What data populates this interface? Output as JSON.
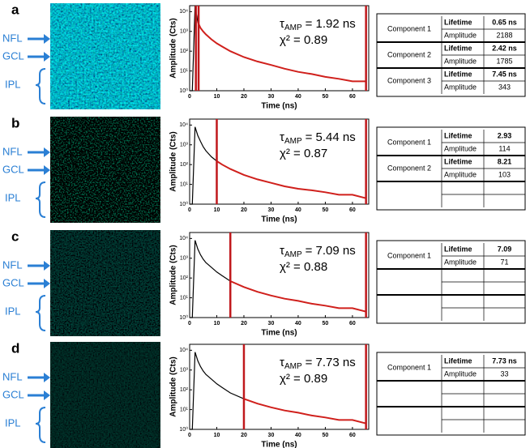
{
  "panels": [
    {
      "letter": "a",
      "layers": [
        "NFL",
        "GCL",
        "IPL"
      ],
      "table": [
        {
          "component": "Component 1",
          "fields": [
            [
              "Lifetime",
              "0.65 ns"
            ],
            [
              "Amplitude",
              "2188"
            ]
          ]
        },
        {
          "component": "Component 2",
          "fields": [
            [
              "Lifetime",
              "2.42 ns"
            ],
            [
              "Amplitude",
              "1785"
            ]
          ]
        },
        {
          "component": "Component 3",
          "fields": [
            [
              "Lifetime",
              "7.45 ns"
            ],
            [
              "Amplitude",
              "343"
            ]
          ]
        }
      ]
    },
    {
      "letter": "b",
      "layers": [
        "NFL",
        "GCL",
        "IPL"
      ],
      "table": [
        {
          "component": "Component 1",
          "fields": [
            [
              "Lifetime",
              "2.93"
            ],
            [
              "Amplitude",
              "114"
            ]
          ]
        },
        {
          "component": "Component 2",
          "fields": [
            [
              "Lifetime",
              "8.21"
            ],
            [
              "Amplitude",
              "103"
            ]
          ]
        }
      ]
    },
    {
      "letter": "c",
      "layers": [
        "NFL",
        "GCL",
        "IPL"
      ],
      "table": [
        {
          "component": "Component 1",
          "fields": [
            [
              "Lifetime",
              "7.09"
            ],
            [
              "Amplitude",
              "71"
            ]
          ]
        }
      ]
    },
    {
      "letter": "d",
      "layers": [
        "NFL",
        "GCL",
        "IPL"
      ],
      "table": [
        {
          "component": "Component 1",
          "fields": [
            [
              "Lifetime",
              "7.73 ns"
            ],
            [
              "Amplitude",
              "33"
            ]
          ]
        }
      ]
    }
  ],
  "chart_data": [
    {
      "type": "line",
      "x_label": "Time (ns)",
      "y_label": "Amplitude (Cts)",
      "log_y": true,
      "tau": {
        "symbol": "τ",
        "subscript": "AMP",
        "text": "= 1.92 ns"
      },
      "chi": "χ² = 0.89",
      "x": [
        0,
        1,
        2,
        3,
        4,
        5,
        6,
        8,
        10,
        12,
        15,
        20,
        25,
        30,
        35,
        40,
        45,
        50,
        55,
        60,
        65
      ],
      "series": [
        {
          "color": "#000000",
          "values": [
            1,
            1,
            20000,
            3000,
            1500,
            1000,
            700,
            400,
            250,
            170,
            100,
            50,
            30,
            20,
            13,
            9,
            7,
            5,
            4,
            3,
            3
          ]
        },
        {
          "color": "#d0201c",
          "values": [
            null,
            null,
            null,
            3000,
            1500,
            1000,
            700,
            400,
            250,
            170,
            100,
            50,
            30,
            20,
            13,
            9,
            7,
            5,
            4,
            3,
            3
          ]
        }
      ],
      "cursors": [
        2.3,
        3.3,
        65
      ],
      "cursor_color": "#c0181c",
      "xlim": [
        0,
        66
      ],
      "ylim": [
        1,
        20000
      ],
      "xticks": [
        0,
        10,
        20,
        30,
        40,
        50,
        60
      ],
      "yticks": [
        {
          "value": 1,
          "label": "10⁰"
        },
        {
          "value": 10,
          "label": "10¹"
        },
        {
          "value": 100,
          "label": "10²"
        },
        {
          "value": 1000,
          "label": "10³"
        },
        {
          "value": 10000,
          "label": "10⁴"
        }
      ]
    },
    {
      "type": "line",
      "x_label": "Time (ns)",
      "y_label": "Amplitude (Cts)",
      "log_y": true,
      "tau": {
        "symbol": "τ",
        "subscript": "AMP",
        "text": "= 5.44 ns"
      },
      "chi": "χ² = 0.87",
      "x": [
        0,
        1,
        2,
        3,
        4,
        5,
        6,
        8,
        10,
        12,
        15,
        20,
        25,
        30,
        35,
        40,
        45,
        50,
        55,
        60,
        65
      ],
      "series": [
        {
          "color": "#000000",
          "values": [
            1,
            1,
            8000,
            3000,
            1500,
            800,
            500,
            250,
            150,
            100,
            60,
            30,
            18,
            12,
            8,
            6,
            5,
            4,
            3,
            3,
            2
          ]
        },
        {
          "color": "#d0201c",
          "values": [
            null,
            null,
            null,
            null,
            null,
            null,
            null,
            null,
            150,
            100,
            60,
            30,
            18,
            12,
            8,
            6,
            5,
            4,
            3,
            3,
            2
          ]
        }
      ],
      "cursors": [
        10,
        65
      ],
      "cursor_color": "#c0181c",
      "xlim": [
        0,
        66
      ],
      "ylim": [
        1,
        20000
      ],
      "xticks": [
        0,
        10,
        20,
        30,
        40,
        50,
        60
      ],
      "yticks": [
        {
          "value": 1,
          "label": "10⁰"
        },
        {
          "value": 10,
          "label": "10¹"
        },
        {
          "value": 100,
          "label": "10²"
        },
        {
          "value": 1000,
          "label": "10³"
        },
        {
          "value": 10000,
          "label": "10⁴"
        }
      ]
    },
    {
      "type": "line",
      "x_label": "Time (ns)",
      "y_label": "Amplitude (Cts)",
      "log_y": true,
      "tau": {
        "symbol": "τ",
        "subscript": "AMP",
        "text": "= 7.09 ns"
      },
      "chi": "χ² = 0.88",
      "x": [
        0,
        1,
        2,
        3,
        4,
        5,
        6,
        8,
        10,
        12,
        15,
        20,
        25,
        30,
        35,
        40,
        45,
        50,
        55,
        60,
        65
      ],
      "series": [
        {
          "color": "#000000",
          "values": [
            1,
            1,
            8000,
            3000,
            1500,
            900,
            600,
            350,
            200,
            130,
            70,
            35,
            20,
            13,
            9,
            7,
            5,
            4,
            3,
            3,
            2
          ]
        },
        {
          "color": "#d0201c",
          "values": [
            null,
            null,
            null,
            null,
            null,
            null,
            null,
            null,
            null,
            null,
            70,
            35,
            20,
            13,
            9,
            7,
            5,
            4,
            3,
            3,
            2
          ]
        }
      ],
      "cursors": [
        15,
        65
      ],
      "cursor_color": "#c0181c",
      "xlim": [
        0,
        66
      ],
      "ylim": [
        1,
        20000
      ],
      "xticks": [
        0,
        10,
        20,
        30,
        40,
        50,
        60
      ],
      "yticks": [
        {
          "value": 1,
          "label": "10⁰"
        },
        {
          "value": 10,
          "label": "10¹"
        },
        {
          "value": 100,
          "label": "10²"
        },
        {
          "value": 1000,
          "label": "10³"
        },
        {
          "value": 10000,
          "label": "10⁴"
        }
      ]
    },
    {
      "type": "line",
      "x_label": "Time (ns)",
      "y_label": "Amplitude (Cts)",
      "log_y": true,
      "tau": {
        "symbol": "τ",
        "subscript": "AMP",
        "text": "= 7.73 ns"
      },
      "chi": "χ² = 0.89",
      "x": [
        0,
        1,
        2,
        3,
        4,
        5,
        6,
        8,
        10,
        12,
        15,
        20,
        25,
        30,
        35,
        40,
        45,
        50,
        55,
        60,
        65
      ],
      "series": [
        {
          "color": "#000000",
          "values": [
            1,
            1,
            8000,
            3000,
            1500,
            900,
            600,
            350,
            200,
            130,
            70,
            35,
            20,
            13,
            9,
            7,
            5,
            4,
            3,
            3,
            2
          ]
        },
        {
          "color": "#d0201c",
          "values": [
            null,
            null,
            null,
            null,
            null,
            null,
            null,
            null,
            null,
            null,
            null,
            35,
            20,
            13,
            9,
            7,
            5,
            4,
            3,
            3,
            2
          ]
        }
      ],
      "cursors": [
        20,
        65
      ],
      "cursor_color": "#c0181c",
      "xlim": [
        0,
        66
      ],
      "ylim": [
        1,
        20000
      ],
      "xticks": [
        0,
        10,
        20,
        30,
        40,
        50,
        60
      ],
      "yticks": [
        {
          "value": 1,
          "label": "10⁰"
        },
        {
          "value": 10,
          "label": "10¹"
        },
        {
          "value": 100,
          "label": "10²"
        },
        {
          "value": 1000,
          "label": "10³"
        },
        {
          "value": 10000,
          "label": "10⁴"
        }
      ]
    }
  ]
}
